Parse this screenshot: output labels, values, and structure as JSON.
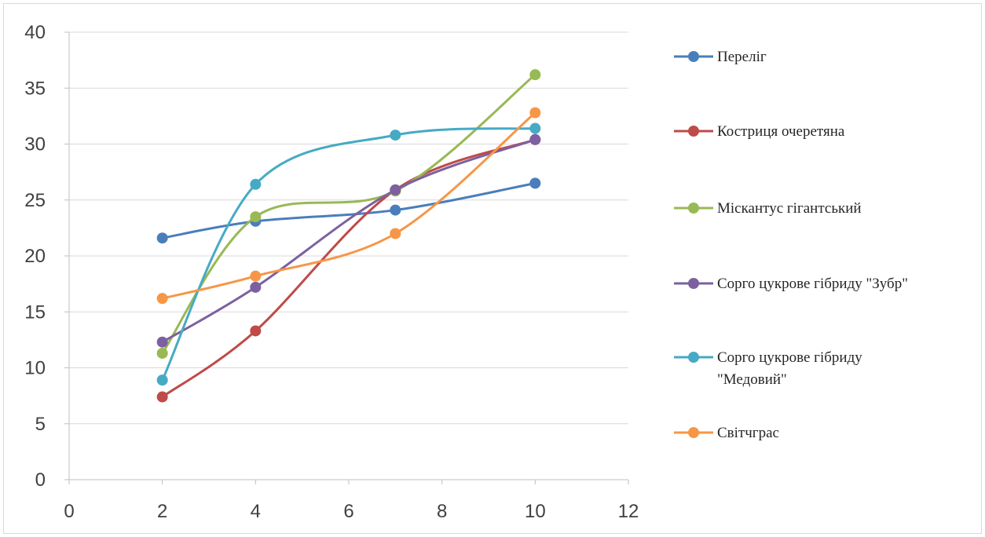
{
  "chart_data": {
    "type": "scatter",
    "xlim": [
      0,
      12
    ],
    "ylim": [
      0,
      40
    ],
    "x_ticks": [
      "0",
      "2",
      "4",
      "6",
      "8",
      "10",
      "12"
    ],
    "y_ticks": [
      "0",
      "5",
      "10",
      "15",
      "20",
      "25",
      "30",
      "35",
      "40"
    ],
    "grid": "horizontal",
    "legend_placement": "right",
    "smooth_lines": true,
    "series": [
      {
        "name": "Переліг",
        "color": "#4a7ebb",
        "x": [
          2,
          4,
          7,
          10
        ],
        "y": [
          21.6,
          23.1,
          24.1,
          26.5
        ]
      },
      {
        "name": "Костриця очеретяна",
        "color": "#be4b48",
        "x": [
          2,
          4,
          7,
          10
        ],
        "y": [
          7.4,
          13.3,
          25.9,
          30.4
        ]
      },
      {
        "name": "Міскантус гігантський",
        "color": "#98b954",
        "x": [
          2,
          4,
          7,
          10
        ],
        "y": [
          11.3,
          23.5,
          25.8,
          36.2
        ]
      },
      {
        "name": "Сорго цукрове гібриду \"Зубр\"",
        "color": "#7d60a0",
        "x": [
          2,
          4,
          7,
          10
        ],
        "y": [
          12.3,
          17.2,
          25.9,
          30.4
        ]
      },
      {
        "name": "Сорго цукрове гібриду \"Медовий\"",
        "color": "#46aac5",
        "x": [
          2,
          4,
          7,
          10
        ],
        "y": [
          8.9,
          26.4,
          30.8,
          31.4
        ]
      },
      {
        "name": "Світчграс",
        "color": "#f79646",
        "x": [
          2,
          4,
          7,
          10
        ],
        "y": [
          16.2,
          18.2,
          22.0,
          32.8
        ]
      }
    ]
  }
}
